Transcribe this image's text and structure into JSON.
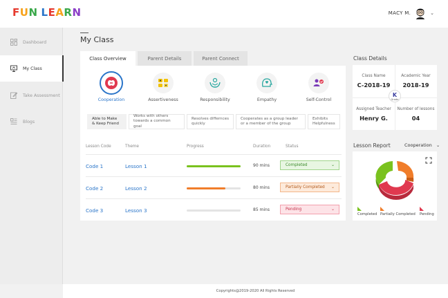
{
  "header": {
    "logo_letters": [
      {
        "ch": "F",
        "color": "#e63a2e"
      },
      {
        "ch": "U",
        "color": "#f7a21b"
      },
      {
        "ch": "N",
        "color": "#3aa84a"
      },
      {
        "ch": " ",
        "color": "#ffffff"
      },
      {
        "ch": "L",
        "color": "#2a75c9"
      },
      {
        "ch": "E",
        "color": "#e63a2e"
      },
      {
        "ch": "A",
        "color": "#f7a21b"
      },
      {
        "ch": "R",
        "color": "#3aa84a"
      },
      {
        "ch": "N",
        "color": "#8b3fc7"
      }
    ],
    "user_name": "MACY M.",
    "chevron": "⌄"
  },
  "sidebar": {
    "items": [
      {
        "label": "Dashboard",
        "icon": "dashboard-icon"
      },
      {
        "label": "My Class",
        "icon": "monitor-icon"
      },
      {
        "label": "Take Assessment",
        "icon": "edit-icon"
      },
      {
        "label": "Blogs",
        "icon": "blogs-icon"
      }
    ]
  },
  "main": {
    "title": "My Class",
    "tabs": [
      {
        "label": "Class Overview"
      },
      {
        "label": "Parent Details"
      },
      {
        "label": "Parent Connect"
      }
    ],
    "traits": [
      {
        "label": "Cooperation",
        "icon": "cooperation-icon"
      },
      {
        "label": "Assertiveness",
        "icon": "assertiveness-icon"
      },
      {
        "label": "Responsibility",
        "icon": "responsibility-icon"
      },
      {
        "label": "Empathy",
        "icon": "empathy-icon"
      },
      {
        "label": "Self-Control",
        "icon": "self-control-icon"
      }
    ],
    "sub_skills": [
      {
        "line1": "Able to Make",
        "line2": "& Keep Friend"
      },
      {
        "line1": "Works with others",
        "line2": "towards a common goal"
      },
      {
        "line1": "Resolves differnces",
        "line2": "quickly"
      },
      {
        "line1": "Cooperates as a group leader",
        "line2": "or a member of the group"
      },
      {
        "line1": "Exhibits",
        "line2": "Helpfulness"
      }
    ],
    "table": {
      "headers": [
        "Lesson Code",
        "Theme",
        "Progress",
        "Duration",
        "Status"
      ],
      "rows": [
        {
          "code": "Code 1",
          "theme": "Lesson 1",
          "progress": 1.0,
          "progress_color": "#7ac21e",
          "duration": "90 mins",
          "status": "Completed",
          "status_color": "#3a8a2a",
          "status_bg": "#e8f6e2",
          "status_border": "#9fd48a"
        },
        {
          "code": "Code 2",
          "theme": "Lesson 2",
          "progress": 0.72,
          "progress_color": "#f07d2a",
          "duration": "80 mins",
          "status": "Partially Completed",
          "status_color": "#b3591a",
          "status_bg": "#fdeadb",
          "status_border": "#f3b68a"
        },
        {
          "code": "Code 3",
          "theme": "Lesson 3",
          "progress": 0.0,
          "progress_color": "#d9d9d9",
          "duration": "85 mins",
          "status": "Pending",
          "status_color": "#c4324a",
          "status_bg": "#fde3e7",
          "status_border": "#f2a0ad"
        }
      ],
      "dropdown_glyph": "⌄"
    }
  },
  "class_details": {
    "title": "Class Details",
    "class_name_label": "Class Name",
    "class_name": "C-2018-19",
    "academic_year_label": "Academic Year",
    "academic_year": "2018-19",
    "teacher_label": "Assigned Teacher",
    "teacher": "Henry G.",
    "lessons_label": "Number of lessons",
    "lessons": "04",
    "grade_letter": "K",
    "grade_label": "Grade"
  },
  "lesson_report": {
    "title": "Lesson Report",
    "selected": "Cooperation",
    "chevron": "⌄",
    "legend": [
      {
        "label": "Completed",
        "color": "#7ac21e"
      },
      {
        "label": "Partially Completed",
        "color": "#f07d2a"
      },
      {
        "label": "Pending",
        "color": "#e0394f"
      }
    ]
  },
  "footer": {
    "text": "Copyrights@2019-2020 All Rights Reserved"
  }
}
